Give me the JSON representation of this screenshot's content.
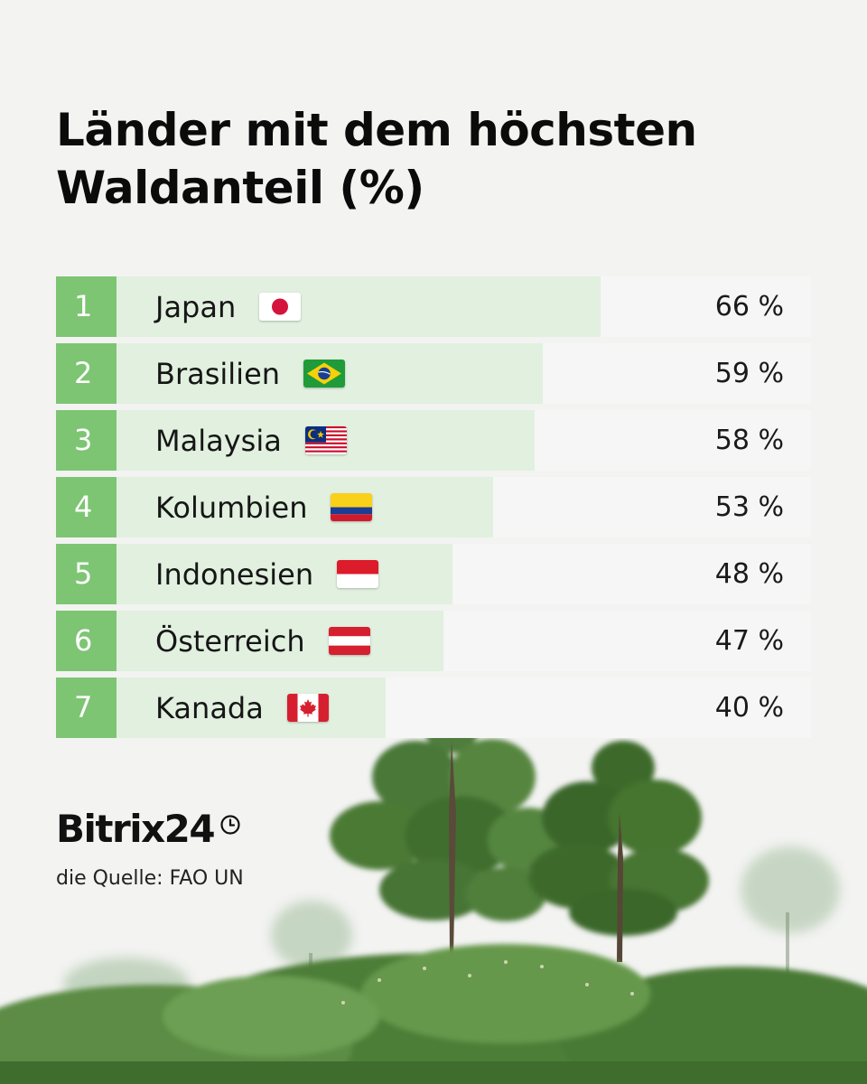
{
  "title": "Länder mit dem höchsten Waldanteil (%)",
  "brand": {
    "name": "Bitrix24",
    "icon": "clock-icon"
  },
  "source": "die Quelle: FAO UN",
  "colors": {
    "rank": "#7dc573",
    "fill": "#e1f0df",
    "track": "#f6f6f6",
    "background": "#f3f3f2"
  },
  "chart_data": {
    "type": "bar",
    "orientation": "horizontal",
    "title": "Länder mit dem höchsten Waldanteil (%)",
    "categories": [
      "Japan",
      "Brasilien",
      "Malaysia",
      "Kolumbien",
      "Indonesien",
      "Österreich",
      "Kanada"
    ],
    "ranks": [
      "1",
      "2",
      "3",
      "4",
      "5",
      "6",
      "7"
    ],
    "values": [
      66,
      59,
      58,
      53,
      48,
      47,
      40
    ],
    "value_labels": [
      "66 %",
      "59 %",
      "58 %",
      "53 %",
      "48 %",
      "47 %",
      "40 %"
    ],
    "flags": [
      "flag-japan-icon",
      "flag-brazil-icon",
      "flag-malaysia-icon",
      "flag-colombia-icon",
      "flag-indonesia-icon",
      "flag-austria-icon",
      "flag-canada-icon"
    ],
    "xlim": [
      0,
      100
    ],
    "grid": false,
    "legend": "none"
  }
}
